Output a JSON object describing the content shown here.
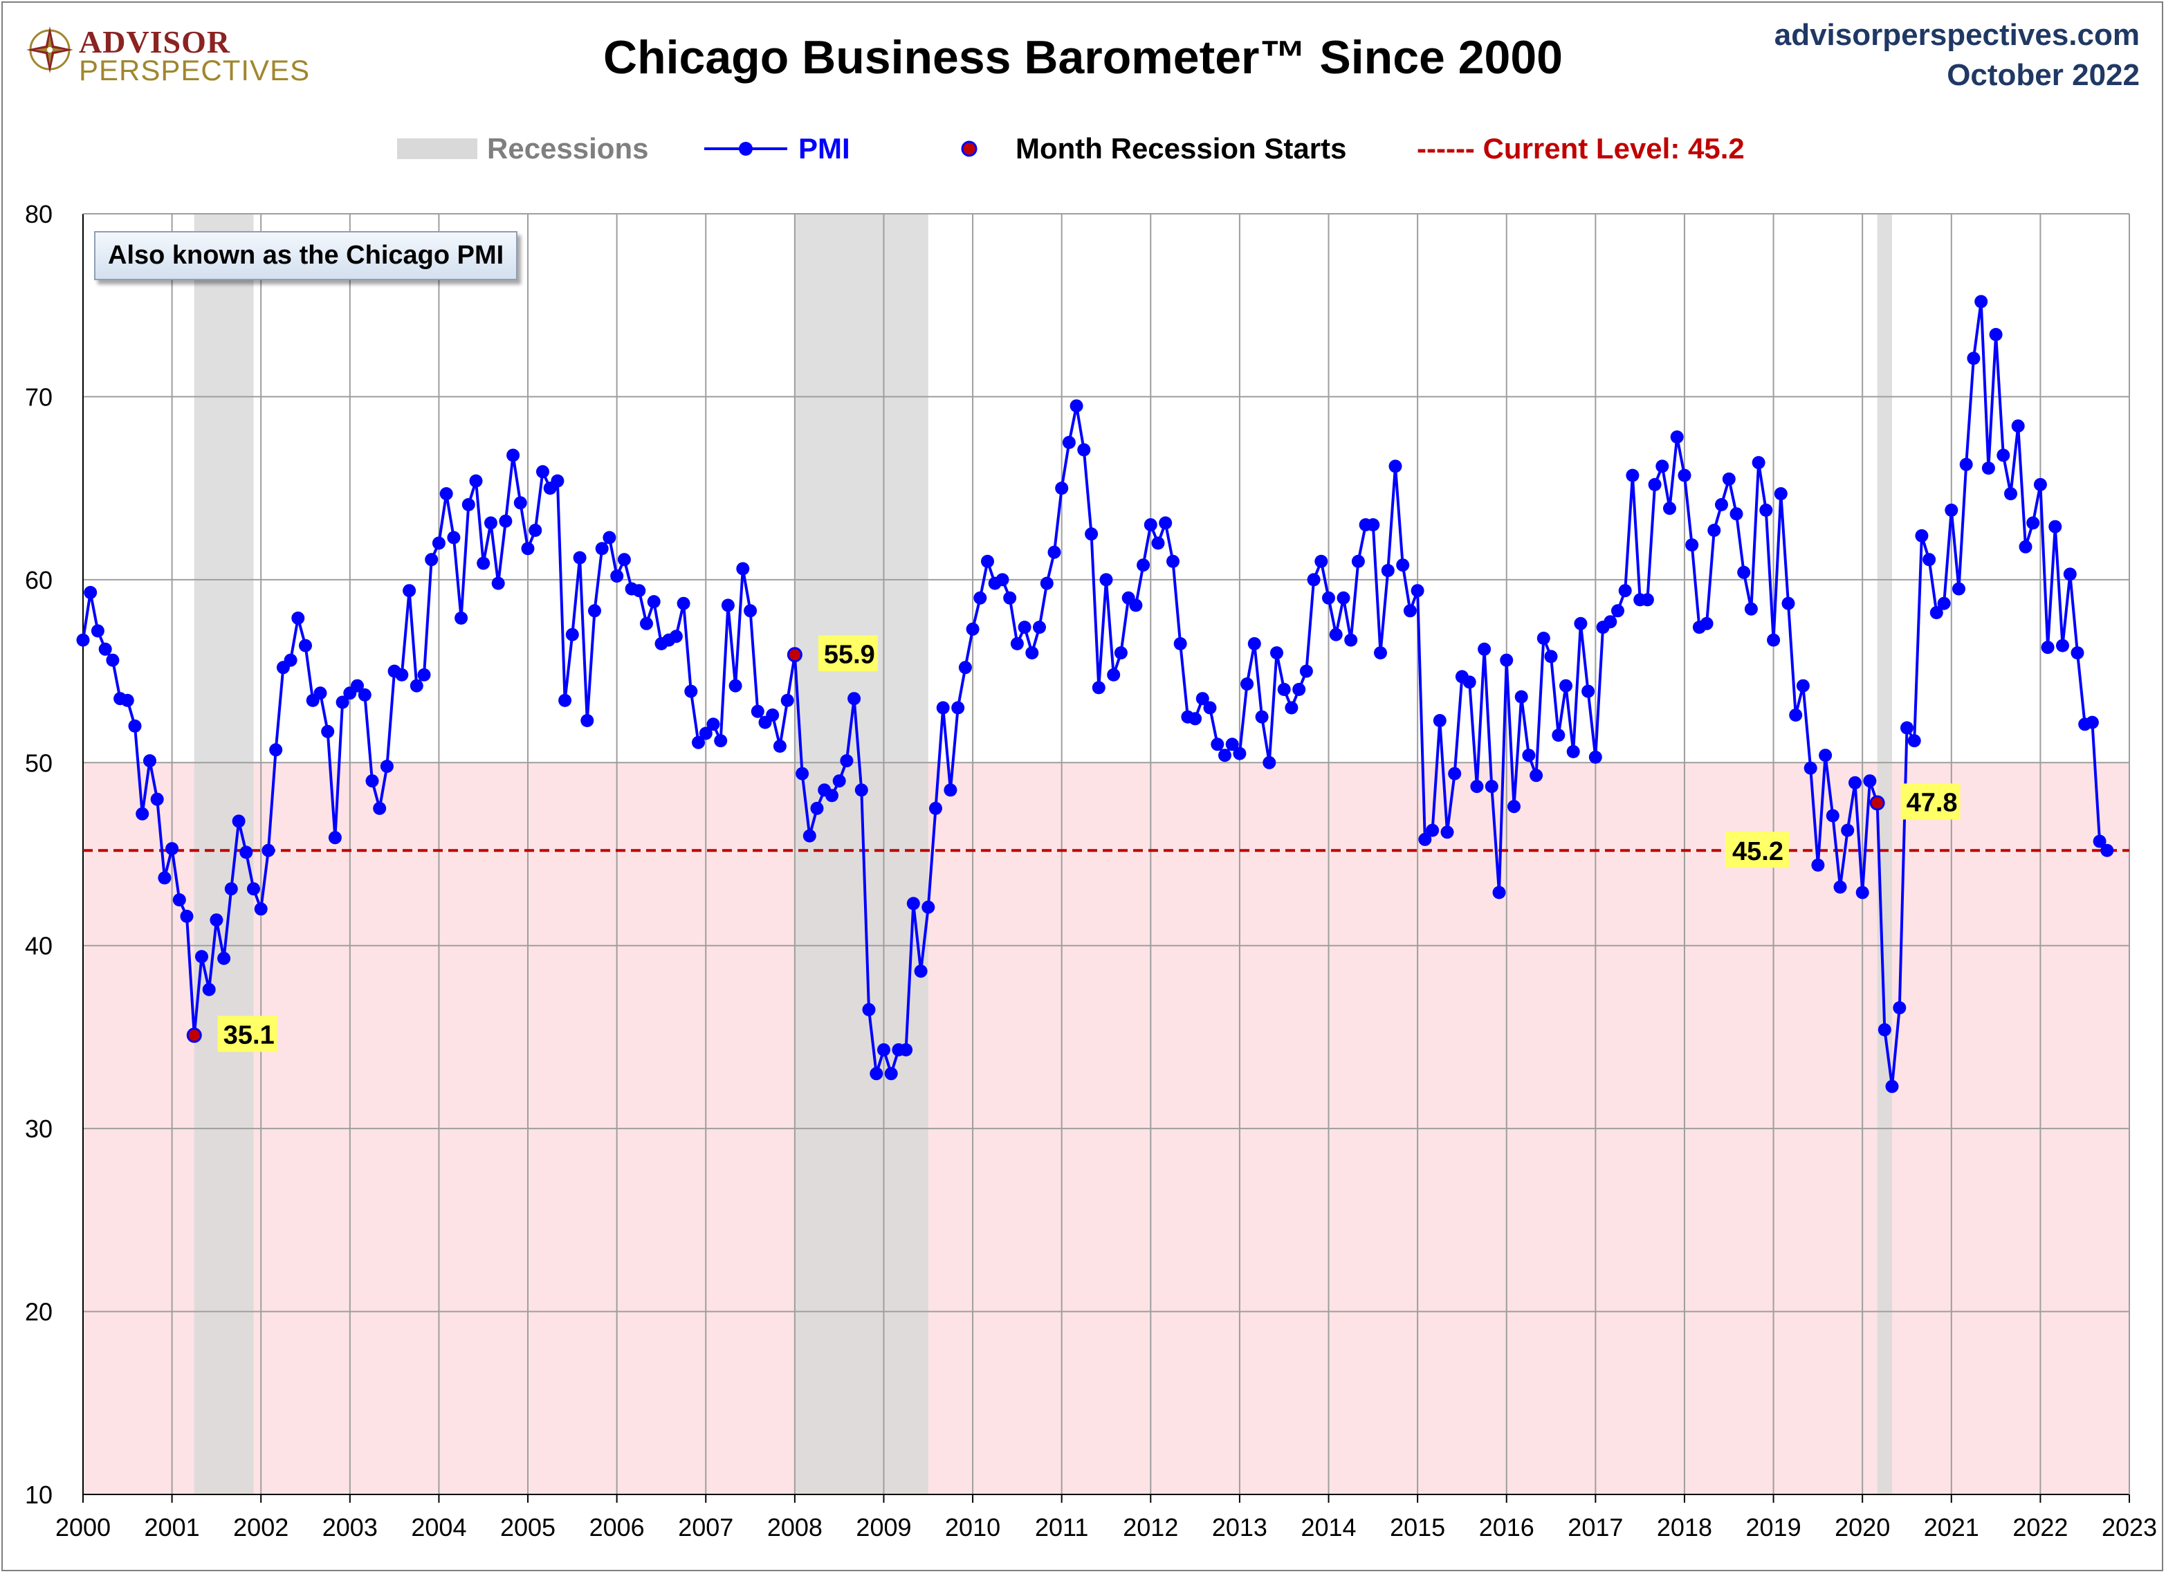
{
  "header": {
    "title": "Chicago Business Barometer™ Since 2000",
    "site": "advisorperspectives.com",
    "date": "October 2022",
    "logo_top": "ADVISOR",
    "logo_bottom": "PERSPECTIVES"
  },
  "legend": {
    "recessions": "Recessions",
    "pmi": "PMI",
    "recession_start": "Month Recession Starts",
    "current_level": "------ Current Level: 45.2"
  },
  "annotation": "Also known as the Chicago PMI",
  "colors": {
    "pmi_line": "#0000ff",
    "recession_shade": "#d9d9d9",
    "contraction_zone": "#fde3e5",
    "current_level": "#c00000",
    "recession_marker": "#c00000",
    "callout_bg": "#ffff66",
    "grid": "#9e9e9e"
  },
  "chart_data": {
    "type": "line",
    "ylim": [
      10,
      80
    ],
    "yticks": [
      10,
      20,
      30,
      40,
      50,
      60,
      70,
      80
    ],
    "xlim": [
      2000,
      2023
    ],
    "xticks": [
      "2000",
      "2001",
      "2002",
      "2003",
      "2004",
      "2005",
      "2006",
      "2007",
      "2008",
      "2009",
      "2010",
      "2011",
      "2012",
      "2013",
      "2014",
      "2015",
      "2016",
      "2017",
      "2018",
      "2019",
      "2020",
      "2021",
      "2022",
      "2023"
    ],
    "contraction_below": 50,
    "current_level": 45.2,
    "current_level_label": "45.2",
    "recessions": [
      {
        "start": 2001.25,
        "end": 2001.9167
      },
      {
        "start": 2008.0,
        "end": 2009.5
      },
      {
        "start": 2020.1667,
        "end": 2020.3333
      }
    ],
    "recession_starts": [
      {
        "x": 2001.25,
        "y": 35.1,
        "label": "35.1"
      },
      {
        "x": 2008.0,
        "y": 55.9,
        "label": "55.9"
      },
      {
        "x": 2020.1667,
        "y": 47.8,
        "label": "47.8"
      }
    ],
    "series": [
      {
        "name": "PMI",
        "start": 2000.0,
        "step_months": 1,
        "values": [
          56.7,
          59.3,
          57.2,
          56.2,
          55.6,
          53.5,
          53.4,
          52.0,
          47.2,
          50.1,
          48.0,
          43.7,
          45.3,
          42.5,
          41.6,
          35.1,
          39.4,
          37.6,
          41.4,
          39.3,
          43.1,
          46.8,
          45.1,
          43.1,
          42.0,
          45.2,
          50.7,
          55.2,
          55.6,
          57.9,
          56.4,
          53.4,
          53.8,
          51.7,
          45.9,
          53.3,
          53.8,
          54.2,
          53.7,
          49.0,
          47.5,
          49.8,
          55.0,
          54.8,
          59.4,
          54.2,
          54.8,
          61.1,
          62.0,
          64.7,
          62.3,
          57.9,
          64.1,
          65.4,
          60.9,
          63.1,
          59.8,
          63.2,
          66.8,
          64.2,
          61.7,
          62.7,
          65.9,
          65.0,
          65.4,
          53.4,
          57.0,
          61.2,
          52.3,
          58.3,
          61.7,
          62.3,
          60.2,
          61.1,
          59.5,
          59.4,
          57.6,
          58.8,
          56.5,
          56.7,
          56.9,
          58.7,
          53.9,
          51.1,
          51.6,
          52.1,
          51.2,
          58.6,
          54.2,
          60.6,
          58.3,
          52.8,
          52.2,
          52.6,
          50.9,
          53.4,
          55.9,
          49.4,
          46.0,
          47.5,
          48.5,
          48.2,
          49.0,
          50.1,
          53.5,
          48.5,
          36.5,
          33.0,
          34.3,
          33.0,
          34.3,
          34.3,
          42.3,
          38.6,
          42.1,
          47.5,
          53.0,
          48.5,
          53.0,
          55.2,
          57.3,
          59.0,
          61.0,
          59.8,
          60.0,
          59.0,
          56.5,
          57.4,
          56.0,
          57.4,
          59.8,
          61.5,
          65.0,
          67.5,
          69.5,
          67.1,
          62.5,
          54.1,
          60.0,
          54.8,
          56.0,
          59.0,
          58.6,
          60.8,
          63.0,
          62.0,
          63.1,
          61.0,
          56.5,
          52.5,
          52.4,
          53.5,
          53.0,
          51.0,
          50.4,
          51.0,
          50.5,
          54.3,
          56.5,
          52.5,
          50.0,
          56.0,
          54.0,
          53.0,
          54.0,
          55.0,
          60.0,
          61.0,
          59.0,
          57.0,
          59.0,
          56.7,
          61.0,
          63.0,
          63.0,
          56.0,
          60.5,
          66.2,
          60.8,
          58.3,
          59.4,
          45.8,
          46.3,
          52.3,
          46.2,
          49.4,
          54.7,
          54.4,
          48.7,
          56.2,
          48.7,
          42.9,
          55.6,
          47.6,
          53.6,
          50.4,
          49.3,
          56.8,
          55.8,
          51.5,
          54.2,
          50.6,
          57.6,
          53.9,
          50.3,
          57.4,
          57.7,
          58.3,
          59.4,
          65.7,
          58.9,
          58.9,
          65.2,
          66.2,
          63.9,
          67.8,
          65.7,
          61.9,
          57.4,
          57.6,
          62.7,
          64.1,
          65.5,
          63.6,
          60.4,
          58.4,
          66.4,
          63.8,
          56.7,
          64.7,
          58.7,
          52.6,
          54.2,
          49.7,
          44.4,
          50.4,
          47.1,
          43.2,
          46.3,
          48.9,
          42.9,
          49.0,
          47.8,
          35.4,
          32.3,
          36.6,
          51.9,
          51.2,
          62.4,
          61.1,
          58.2,
          58.7,
          63.8,
          59.5,
          66.3,
          72.1,
          75.2,
          66.1,
          73.4,
          66.8,
          64.7,
          68.4,
          61.8,
          63.1,
          65.2,
          56.3,
          62.9,
          56.4,
          60.3,
          56.0,
          52.1,
          52.2,
          45.7,
          45.2
        ]
      }
    ]
  }
}
